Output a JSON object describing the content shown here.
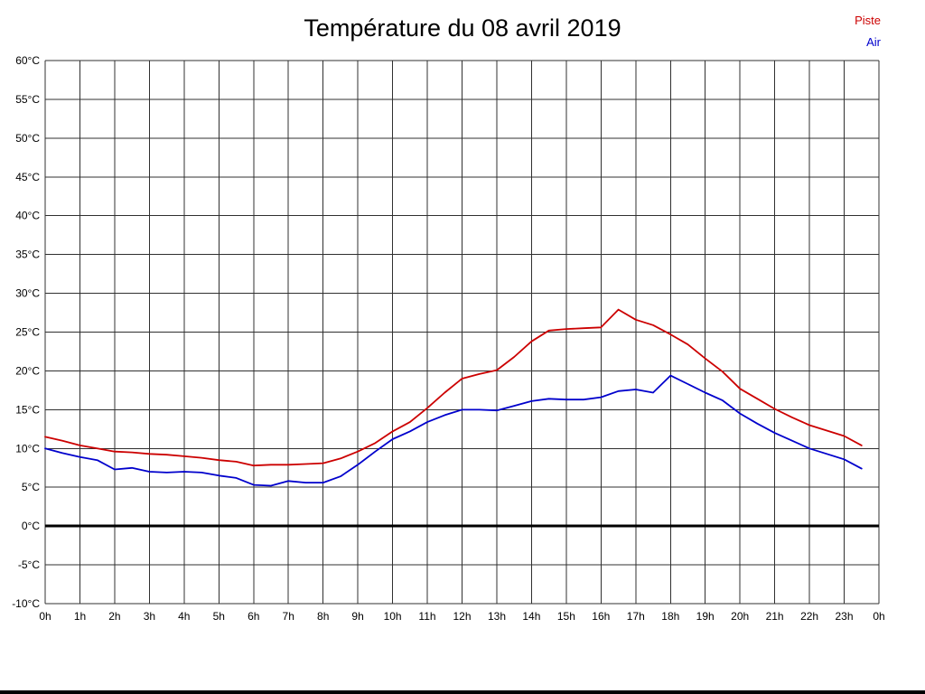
{
  "title": "Température du 08 avril 2019",
  "legend": {
    "piste": {
      "label": "Piste",
      "color": "#cc0000"
    },
    "air": {
      "label": "Air",
      "color": "#0000cc"
    }
  },
  "chart_data": {
    "type": "line",
    "title": "Température du 08 avril 2019",
    "xlabel": "",
    "ylabel": "",
    "xlim": [
      0,
      24
    ],
    "ylim": [
      -10,
      60
    ],
    "grid": true,
    "grid_color": "#303030",
    "zero_line": {
      "value": 0,
      "color": "#000000",
      "width": 3
    },
    "legend_position": "top-right",
    "x_ticks": [
      0,
      1,
      2,
      3,
      4,
      5,
      6,
      7,
      8,
      9,
      10,
      11,
      12,
      13,
      14,
      15,
      16,
      17,
      18,
      19,
      20,
      21,
      22,
      23,
      24
    ],
    "x_tick_labels": [
      "0h",
      "1h",
      "2h",
      "3h",
      "4h",
      "5h",
      "6h",
      "7h",
      "8h",
      "9h",
      "10h",
      "11h",
      "12h",
      "13h",
      "14h",
      "15h",
      "16h",
      "17h",
      "18h",
      "19h",
      "20h",
      "21h",
      "22h",
      "23h",
      "0h"
    ],
    "y_ticks": [
      -10,
      -5,
      0,
      5,
      10,
      15,
      20,
      25,
      30,
      35,
      40,
      45,
      50,
      55,
      60
    ],
    "y_tick_labels": [
      "-10°C",
      "-5°C",
      "0°C",
      "5°C",
      "10°C",
      "15°C",
      "20°C",
      "25°C",
      "30°C",
      "35°C",
      "40°C",
      "45°C",
      "50°C",
      "55°C",
      "60°C"
    ],
    "series": [
      {
        "name": "Piste",
        "color": "#cc0000",
        "x": [
          0,
          0.5,
          1,
          1.5,
          2,
          2.5,
          3,
          3.5,
          4,
          4.5,
          5,
          5.5,
          6,
          6.5,
          7,
          7.5,
          8,
          8.5,
          9,
          9.5,
          10,
          10.5,
          11,
          11.5,
          12,
          12.5,
          13,
          13.5,
          14,
          14.5,
          15,
          15.5,
          16,
          16.5,
          17,
          17.5,
          18,
          18.5,
          19,
          19.5,
          20,
          20.5,
          21,
          21.5,
          22,
          22.5,
          23,
          23.5
        ],
        "values": [
          11.5,
          11.0,
          10.4,
          10.0,
          9.6,
          9.5,
          9.3,
          9.2,
          9.0,
          8.8,
          8.5,
          8.3,
          7.8,
          7.9,
          7.9,
          8.0,
          8.1,
          8.7,
          9.6,
          10.7,
          12.2,
          13.4,
          15.2,
          17.2,
          19.0,
          19.6,
          20.1,
          21.8,
          23.8,
          25.2,
          25.4,
          25.5,
          25.6,
          27.9,
          26.6,
          25.9,
          24.7,
          23.4,
          21.6,
          19.9,
          17.7,
          16.4,
          15.1,
          14.0,
          13.0,
          12.3,
          11.6,
          10.4
        ]
      },
      {
        "name": "Air",
        "color": "#0000cc",
        "x": [
          0,
          0.5,
          1,
          1.5,
          2,
          2.5,
          3,
          3.5,
          4,
          4.5,
          5,
          5.5,
          6,
          6.5,
          7,
          7.5,
          8,
          8.5,
          9,
          9.5,
          10,
          10.5,
          11,
          11.5,
          12,
          12.5,
          13,
          13.5,
          14,
          14.5,
          15,
          15.5,
          16,
          16.5,
          17,
          17.5,
          18,
          18.5,
          19,
          19.5,
          20,
          20.5,
          21,
          21.5,
          22,
          22.5,
          23,
          23.5
        ],
        "values": [
          10.0,
          9.4,
          8.9,
          8.5,
          7.3,
          7.5,
          7.0,
          6.9,
          7.0,
          6.9,
          6.5,
          6.2,
          5.3,
          5.2,
          5.8,
          5.6,
          5.6,
          6.4,
          7.9,
          9.6,
          11.2,
          12.2,
          13.4,
          14.3,
          15.0,
          15.0,
          14.9,
          15.5,
          16.1,
          16.4,
          16.3,
          16.3,
          16.6,
          17.4,
          17.6,
          17.2,
          19.4,
          18.3,
          17.2,
          16.2,
          14.5,
          13.2,
          12.0,
          11.0,
          10.0,
          9.3,
          8.6,
          7.4
        ]
      }
    ]
  }
}
